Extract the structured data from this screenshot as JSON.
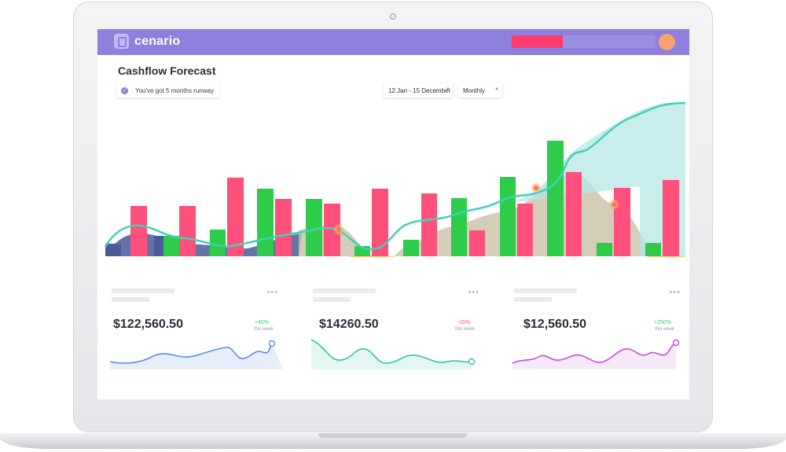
{
  "app": {
    "brand": "cenario"
  },
  "header": {
    "redacted": true
  },
  "page": {
    "title": "Cashflow Forecast",
    "runway_badge": "You've got 5 months runway",
    "date_range": "12 Jan - 15 December",
    "period": "Monthly"
  },
  "colors": {
    "header": "#8e80dc",
    "income_bar": "#2ecc4a",
    "expense_bar": "#ff4f7b",
    "forecast_line": "#3fd1b8",
    "negative_area": "#fbd27a",
    "past_area": "#4a5a9a",
    "future_area": "#c9c2a8"
  },
  "cards": [
    {
      "amount": "$122,560.50",
      "change": "+40%",
      "change_color": "#2ecc71",
      "period": "this week",
      "line_color": "#5a8de0",
      "fill_color": "#e6eefb"
    },
    {
      "amount": "$14260.50",
      "change": "-15%",
      "change_color": "#ff5a6a",
      "period": "this week",
      "line_color": "#2fc4a6",
      "fill_color": "#e3f6f1"
    },
    {
      "amount": "$12,560.50",
      "change": "+250%",
      "change_color": "#2ecc71",
      "period": "this week",
      "line_color": "#c24fd8",
      "fill_color": "#f6e9fa"
    }
  ]
}
